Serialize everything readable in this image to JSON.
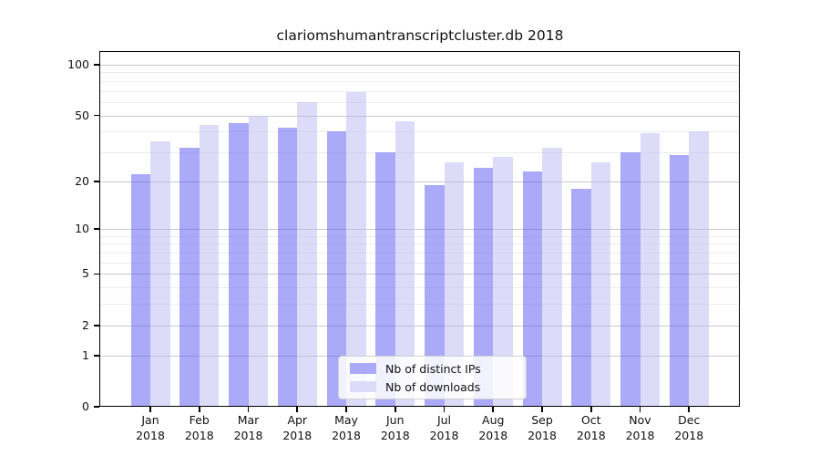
{
  "title": "clariomshumantranscriptcluster.db 2018",
  "colors": {
    "background": "#ffffff",
    "axis": "#000000",
    "major_grid": "#c9c9c9",
    "minor_grid": "#ececec",
    "text": "#111111",
    "distinct_ips_bar": "#aaaaf8",
    "downloads_bar": "#dcdcf8"
  },
  "chart_data": {
    "type": "bar",
    "title": "clariomshumantranscriptcluster.db 2018",
    "categories": [
      "Jan",
      "Feb",
      "Mar",
      "Apr",
      "May",
      "Jun",
      "Jul",
      "Aug",
      "Sep",
      "Oct",
      "Nov",
      "Dec"
    ],
    "year": "2018",
    "series": [
      {
        "name": "Nb of distinct IPs",
        "color": "#aaaaf8",
        "values": [
          22,
          32,
          45,
          42,
          40,
          30,
          19,
          24,
          23,
          18,
          30,
          29
        ]
      },
      {
        "name": "Nb of downloads",
        "color": "#dcdcf8",
        "values": [
          35,
          44,
          49,
          60,
          69,
          46,
          26,
          28,
          32,
          26,
          39,
          40
        ]
      }
    ],
    "yscale": "log1p",
    "yticks": [
      0,
      1,
      2,
      5,
      10,
      20,
      50,
      100
    ],
    "minor_gridlines": [
      3,
      4,
      6,
      7,
      8,
      9,
      30,
      40,
      60,
      70,
      80,
      90
    ],
    "ylim": [
      0,
      118
    ],
    "grid": true,
    "xlabel": "",
    "ylabel": "",
    "legend_position": "bottom-center"
  }
}
